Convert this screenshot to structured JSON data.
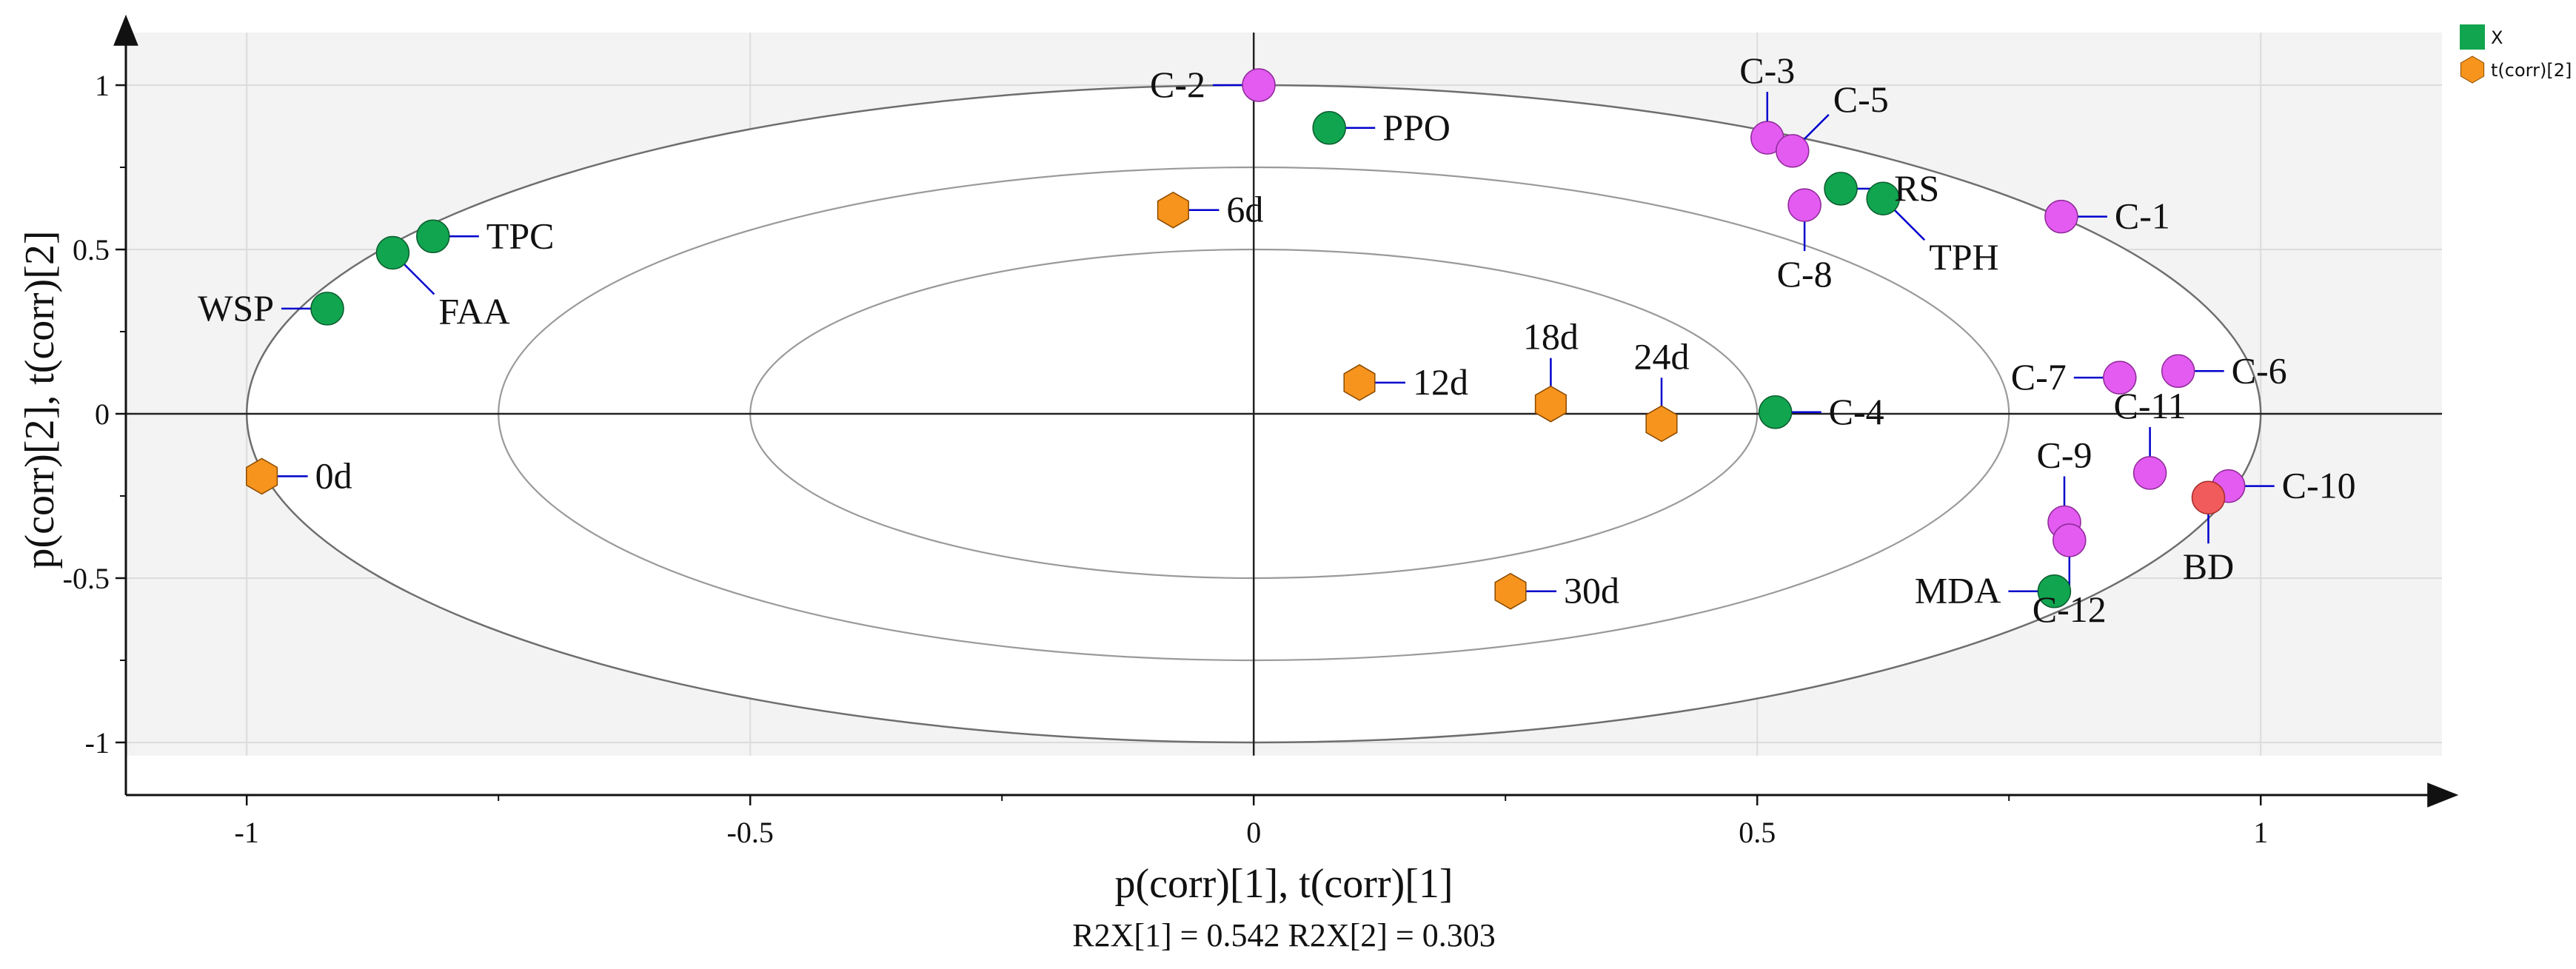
{
  "chart_data": {
    "type": "scatter",
    "title": "",
    "xlabel": "p(corr)[1], t(corr)[1]",
    "ylabel": "p(corr)[2], t(corr)[2]",
    "footnote": "R2X[1] = 0.542 R2X[2] = 0.303",
    "xlim": [
      -1.12,
      1.18
    ],
    "ylim": [
      -1.16,
      1.16
    ],
    "shaded_xrange": [
      -1.12,
      1.18
    ],
    "shaded_yrange": [
      -1.04,
      1.16
    ],
    "x_ticks": [
      {
        "value": -1,
        "label": "-1"
      },
      {
        "value": -0.5,
        "label": "-0.5"
      },
      {
        "value": 0,
        "label": "0"
      },
      {
        "value": 0.5,
        "label": "0.5"
      },
      {
        "value": 1,
        "label": "1"
      }
    ],
    "y_ticks": [
      {
        "value": 1,
        "label": "1"
      },
      {
        "value": 0.5,
        "label": "0.5"
      },
      {
        "value": 0,
        "label": "0"
      },
      {
        "value": -0.5,
        "label": "-0.5"
      },
      {
        "value": -1,
        "label": "-1"
      }
    ],
    "ellipses": [
      {
        "rx": 1.0,
        "ry": 1.0
      },
      {
        "rx": 0.75,
        "ry": 0.75
      },
      {
        "rx": 0.5,
        "ry": 0.5
      }
    ],
    "legend": [
      {
        "label": "X",
        "shape": "square",
        "color": "#12a550"
      },
      {
        "label": "t(corr)[2]",
        "shape": "hexagon",
        "color": "#f7941d"
      }
    ],
    "colors": {
      "variable": "#12a550",
      "cluster": "#e35bf0",
      "bd": "#f25b5b",
      "score": "#f7941d",
      "leader": "#0000cc",
      "shade": "#f3f3f3"
    },
    "points": [
      {
        "label": "C-2",
        "x": 0.005,
        "y": 1.0,
        "group": "cluster",
        "dir": "W"
      },
      {
        "label": "PPO",
        "x": 0.075,
        "y": 0.87,
        "group": "variable",
        "dir": "E"
      },
      {
        "label": "C-3",
        "x": 0.51,
        "y": 0.84,
        "group": "cluster",
        "dir": "N"
      },
      {
        "label": "C-5",
        "x": 0.535,
        "y": 0.8,
        "group": "cluster",
        "dir": "NE"
      },
      {
        "label": "RS",
        "x": 0.583,
        "y": 0.685,
        "group": "variable",
        "dir": "E"
      },
      {
        "label": "TPH",
        "x": 0.625,
        "y": 0.655,
        "group": "variable",
        "dir": "SE"
      },
      {
        "label": "C-8",
        "x": 0.547,
        "y": 0.635,
        "group": "cluster",
        "dir": "S"
      },
      {
        "label": "C-1",
        "x": 0.802,
        "y": 0.6,
        "group": "cluster",
        "dir": "E"
      },
      {
        "label": "TPC",
        "x": -0.815,
        "y": 0.54,
        "group": "variable",
        "dir": "E"
      },
      {
        "label": "FAA",
        "x": -0.855,
        "y": 0.49,
        "group": "variable",
        "dir": "SE"
      },
      {
        "label": "WSP",
        "x": -0.92,
        "y": 0.32,
        "group": "variable",
        "dir": "W"
      },
      {
        "label": "6d",
        "x": -0.08,
        "y": 0.62,
        "group": "score",
        "dir": "E"
      },
      {
        "label": "12d",
        "x": 0.105,
        "y": 0.095,
        "group": "score",
        "dir": "E"
      },
      {
        "label": "18d",
        "x": 0.295,
        "y": 0.03,
        "group": "score",
        "dir": "N"
      },
      {
        "label": "24d",
        "x": 0.405,
        "y": -0.03,
        "group": "score",
        "dir": "N"
      },
      {
        "label": "0d",
        "x": -0.985,
        "y": -0.19,
        "group": "score",
        "dir": "E"
      },
      {
        "label": "30d",
        "x": 0.255,
        "y": -0.54,
        "group": "score",
        "dir": "E"
      },
      {
        "label": "C-4",
        "x": 0.518,
        "y": 0.005,
        "group": "variable",
        "dir": "E"
      },
      {
        "label": "C-7",
        "x": 0.86,
        "y": 0.11,
        "group": "cluster",
        "dir": "W"
      },
      {
        "label": "C-6",
        "x": 0.918,
        "y": 0.13,
        "group": "cluster",
        "dir": "E"
      },
      {
        "label": "C-11",
        "x": 0.89,
        "y": -0.18,
        "group": "cluster",
        "dir": "N"
      },
      {
        "label": "C-10",
        "x": 0.968,
        "y": -0.22,
        "group": "cluster",
        "dir": "E"
      },
      {
        "label": "BD",
        "x": 0.948,
        "y": -0.255,
        "group": "bd",
        "dir": "S"
      },
      {
        "label": "C-9",
        "x": 0.805,
        "y": -0.33,
        "group": "cluster",
        "dir": "N"
      },
      {
        "label": "MDA",
        "x": 0.795,
        "y": -0.54,
        "group": "variable",
        "dir": "W"
      },
      {
        "label": "C-12",
        "x": 0.81,
        "y": -0.385,
        "group": "cluster",
        "dir": "S"
      }
    ]
  }
}
